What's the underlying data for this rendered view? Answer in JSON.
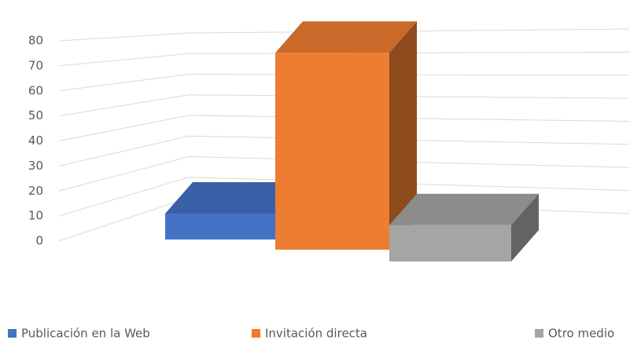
{
  "chart_data": {
    "type": "bar3d",
    "categories": [
      "Publicación en la Web",
      "Invitación directa",
      "Otro medio"
    ],
    "values": [
      10,
      76,
      14
    ],
    "colors": [
      "#4472c4",
      "#ed7d31",
      "#a5a5a5"
    ],
    "ylim": [
      0,
      80
    ],
    "yticks": [
      0,
      10,
      20,
      30,
      40,
      50,
      60,
      70,
      80
    ],
    "grid": true,
    "legend": "bottom"
  }
}
